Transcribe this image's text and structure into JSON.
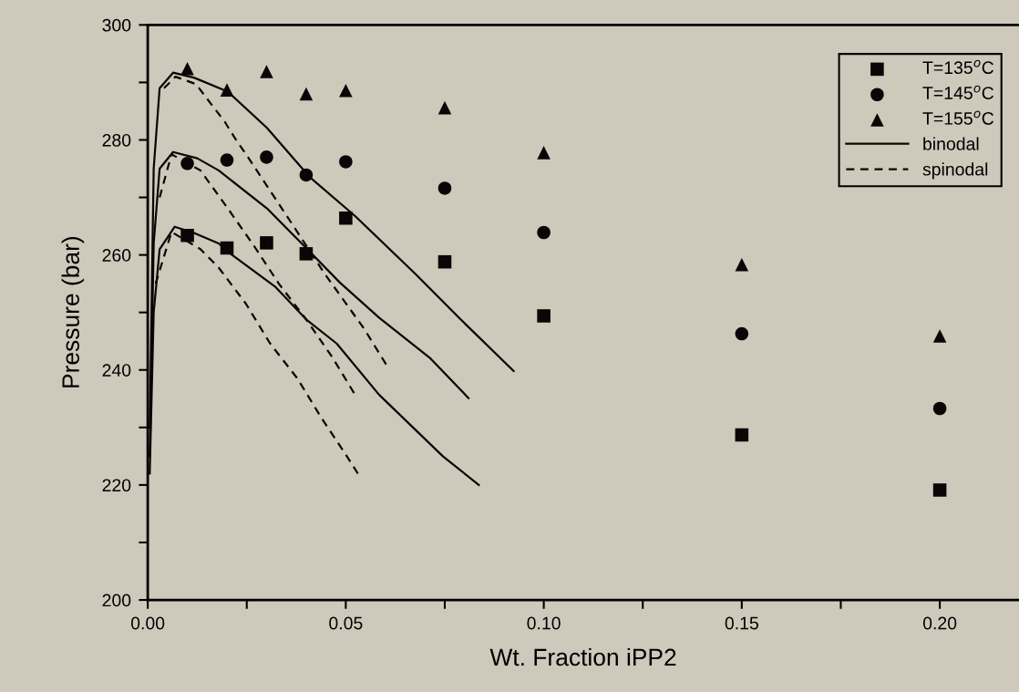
{
  "chart_data": {
    "type": "scatter",
    "xlabel": "Wt. Fraction iPP2",
    "ylabel": "Pressure (bar)",
    "xlim": [
      0,
      0.22
    ],
    "ylim": [
      200,
      300
    ],
    "xticks": [
      {
        "value": 0,
        "label": "0.00"
      },
      {
        "value": 0.025,
        "label": null
      },
      {
        "value": 0.05,
        "label": "0.05"
      },
      {
        "value": 0.075,
        "label": null
      },
      {
        "value": 0.1,
        "label": "0.10"
      },
      {
        "value": 0.125,
        "label": null
      },
      {
        "value": 0.15,
        "label": "0.15"
      },
      {
        "value": 0.175,
        "label": null
      },
      {
        "value": 0.2,
        "label": "0.20"
      }
    ],
    "yticks": [
      200,
      {
        "value": 210,
        "label": null
      },
      220,
      {
        "value": 230,
        "label": null
      },
      240,
      {
        "value": 250,
        "label": null
      },
      260,
      {
        "value": 270,
        "label": null
      },
      280,
      {
        "value": 290,
        "label": null
      },
      300
    ],
    "grid": false,
    "legend": "top right",
    "series": [
      {
        "name": "T=135$^{o}$C",
        "marker": "square",
        "color": "#0a0506",
        "x": [
          0.01,
          0.02,
          0.03,
          0.04,
          0.05,
          0.075,
          0.1,
          0.15,
          0.2
        ],
        "values": [
          263.4,
          261.2,
          262.1,
          260.2,
          266.4,
          258.8,
          249.4,
          228.7,
          219.1
        ]
      },
      {
        "name": "T=145$^{o}$C",
        "marker": "circle",
        "color": "#0a0506",
        "x": [
          0.01,
          0.02,
          0.03,
          0.04,
          0.05,
          0.075,
          0.1,
          0.15,
          0.2
        ],
        "values": [
          275.9,
          276.5,
          277.0,
          273.9,
          276.2,
          271.6,
          263.9,
          246.3,
          233.3
        ]
      },
      {
        "name": "T=155$^{o}$C",
        "marker": "triangle",
        "color": "#0a0506",
        "x": [
          0.01,
          0.02,
          0.03,
          0.04,
          0.05,
          0.075,
          0.1,
          0.15,
          0.2
        ],
        "values": [
          292.4,
          288.7,
          291.9,
          288.0,
          288.6,
          285.6,
          277.8,
          258.3,
          245.9
        ]
      },
      {
        "name": "binodal",
        "type": "line",
        "line_style": "solid",
        "color": "#0a0506",
        "x": [
          0.0005,
          0.0015,
          0.003,
          0.0068,
          0.0114,
          0.0179,
          0.0209,
          0.0323,
          0.04,
          0.0477,
          0.0584,
          0.0745,
          0.0836
        ],
        "values": [
          222,
          250,
          261,
          264.9,
          263.9,
          262.0,
          260.2,
          254.4,
          248.8,
          244.6,
          235.7,
          225.0,
          220.0
        ]
      },
      {
        "type": "line",
        "line_style": "solid",
        "color": "#0a0506",
        "x": [
          0.0005,
          0.0015,
          0.003,
          0.0064,
          0.0125,
          0.0179,
          0.0301,
          0.04,
          0.0485,
          0.0584,
          0.0714,
          0.081
        ],
        "values": [
          225,
          262,
          275,
          277.9,
          276.8,
          274.7,
          268.1,
          261.2,
          255.2,
          249.1,
          242.0,
          235.1
        ]
      },
      {
        "type": "line",
        "line_style": "solid",
        "color": "#0a0506",
        "x": [
          0.0005,
          0.0015,
          0.003,
          0.0064,
          0.0118,
          0.0202,
          0.0301,
          0.0408,
          0.0523,
          0.0676,
          0.079,
          0.0924
        ],
        "values": [
          230,
          275,
          289,
          291.7,
          290.8,
          288.4,
          282.1,
          273.6,
          266.8,
          256.7,
          248.8,
          239.8
        ]
      },
      {
        "name": "spinodal",
        "type": "line",
        "line_style": "dashed",
        "color": "#0a0506",
        "x": [
          0.002,
          0.006,
          0.0133,
          0.0179,
          0.0248,
          0.0309,
          0.0378,
          0.0439,
          0.05,
          0.0534
        ],
        "values": [
          255,
          264,
          261.0,
          257.8,
          251.5,
          244.6,
          238.5,
          231.6,
          225.3,
          221.6
        ]
      },
      {
        "type": "line",
        "line_style": "dashed",
        "color": "#0a0506",
        "x": [
          0.003,
          0.006,
          0.0133,
          0.0202,
          0.0267,
          0.0332,
          0.04,
          0.0466,
          0.0527
        ],
        "values": [
          270,
          277.5,
          274.7,
          268.1,
          261.7,
          254.9,
          248.8,
          242.2,
          235.3
        ]
      },
      {
        "type": "line",
        "line_style": "dashed",
        "color": "#0a0506",
        "x": [
          0.0041,
          0.007,
          0.0122,
          0.0156,
          0.0194,
          0.0223,
          0.0255,
          0.0351,
          0.0447,
          0.0546,
          0.0607
        ],
        "values": [
          289.0,
          291,
          289.7,
          286.6,
          283.2,
          280.0,
          276.8,
          266.8,
          256.7,
          247.2,
          240.4
        ]
      }
    ]
  }
}
